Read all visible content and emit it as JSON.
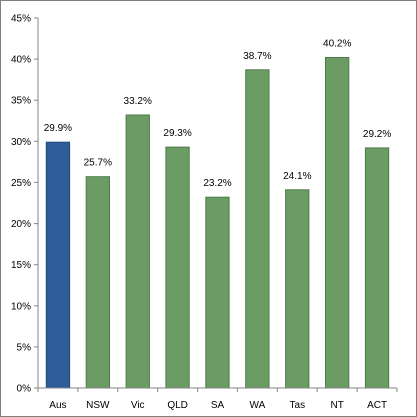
{
  "chart_data": {
    "type": "bar",
    "categories": [
      "Aus",
      "NSW",
      "Vic",
      "QLD",
      "SA",
      "WA",
      "Tas",
      "NT",
      "ACT"
    ],
    "values": [
      29.9,
      25.7,
      33.2,
      29.3,
      23.2,
      38.7,
      24.1,
      40.2,
      29.2
    ],
    "data_labels": [
      "29.9%",
      "25.7%",
      "33.2%",
      "29.3%",
      "23.2%",
      "38.7%",
      "24.1%",
      "40.2%",
      "29.2%"
    ],
    "title": "",
    "xlabel": "",
    "ylabel": "",
    "ylim": [
      0,
      45
    ],
    "yticks": [
      0,
      5,
      10,
      15,
      20,
      25,
      30,
      35,
      40,
      45
    ],
    "ytick_labels": [
      "0%",
      "5%",
      "10%",
      "15%",
      "20%",
      "25%",
      "30%",
      "35%",
      "40%",
      "45%"
    ],
    "grid": false,
    "legend": "none",
    "colors": {
      "highlight": "#2e5c99",
      "highlight_border": "#24487a",
      "default": "#6a9c64",
      "default_border": "#4f7a4a",
      "axis": "#868686"
    },
    "highlight_category": "Aus"
  }
}
